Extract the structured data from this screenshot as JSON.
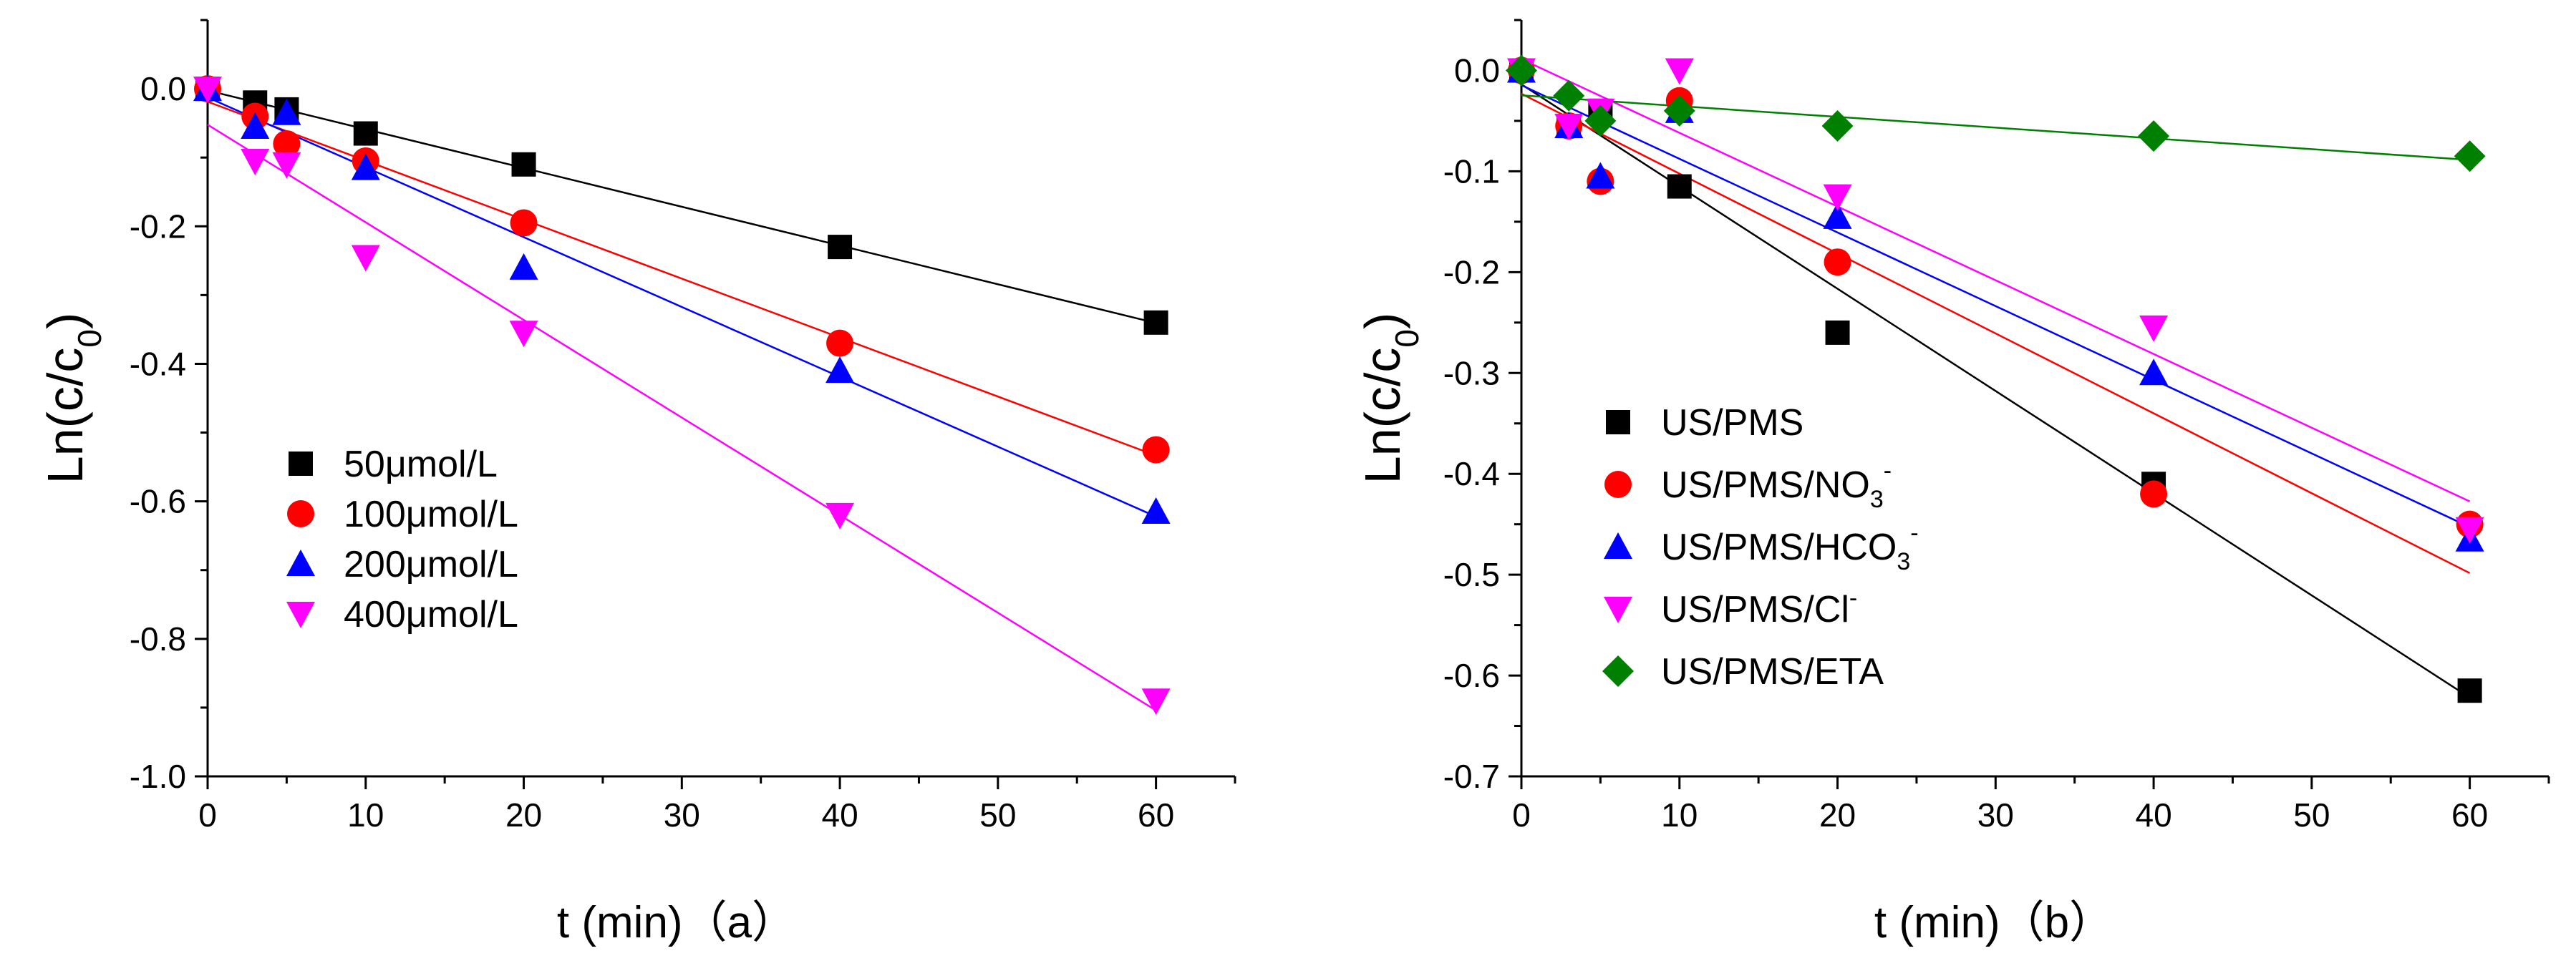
{
  "chart_data": [
    {
      "type": "scatter",
      "panel": "a",
      "title": "",
      "xlabel": "t (min)（a）",
      "ylabel": "Ln(c/c",
      "ylabel_sub": "0",
      "ylabel_close": ")",
      "xlim": [
        0,
        65
      ],
      "ylim": [
        -1.0,
        0.1
      ],
      "xticks": [
        0,
        10,
        20,
        30,
        40,
        50,
        60
      ],
      "xtick_labels": [
        "0",
        "10",
        "20",
        "30",
        "40",
        "50",
        "60"
      ],
      "yticks": [
        0.0,
        -0.2,
        -0.4,
        -0.6,
        -0.8,
        -1.0
      ],
      "ytick_labels": [
        "0.0",
        "-0.2",
        "-0.4",
        "-0.6",
        "-0.8",
        "-1.0"
      ],
      "grid": false,
      "legend_position": "lower-left",
      "fits": "linear",
      "series": [
        {
          "name": "50μmol/L",
          "label": [
            "50μmol/L"
          ],
          "marker": "square",
          "color": "#000000",
          "x": [
            0,
            3,
            5,
            10,
            20,
            40,
            60
          ],
          "y": [
            0.0,
            -0.02,
            -0.03,
            -0.065,
            -0.11,
            -0.23,
            -0.34
          ]
        },
        {
          "name": "100μmol/L",
          "label": [
            "100μmol/L"
          ],
          "marker": "circle",
          "color": "#ff0000",
          "x": [
            0,
            3,
            5,
            10,
            20,
            40,
            60
          ],
          "y": [
            0.0,
            -0.04,
            -0.08,
            -0.105,
            -0.195,
            -0.37,
            -0.525
          ]
        },
        {
          "name": "200μmol/L",
          "label": [
            "200μmol/L"
          ],
          "marker": "triangle-up",
          "color": "#0000ff",
          "x": [
            0,
            3,
            5,
            10,
            20,
            40,
            60
          ],
          "y": [
            0.0,
            -0.055,
            -0.035,
            -0.115,
            -0.26,
            -0.41,
            -0.615
          ]
        },
        {
          "name": "400μmol/L",
          "label": [
            "400μmol/L"
          ],
          "marker": "triangle-down",
          "color": "#ff00ff",
          "x": [
            0,
            3,
            5,
            10,
            20,
            40,
            60
          ],
          "y": [
            0.0,
            -0.105,
            -0.11,
            -0.245,
            -0.355,
            -0.62,
            -0.89
          ]
        }
      ]
    },
    {
      "type": "scatter",
      "panel": "b",
      "title": "",
      "xlabel": "t (min)（b）",
      "ylabel": "Ln(c/c",
      "ylabel_sub": "0",
      "ylabel_close": ")",
      "xlim": [
        0,
        65
      ],
      "ylim": [
        -0.7,
        0.05
      ],
      "xticks": [
        0,
        10,
        20,
        30,
        40,
        50,
        60
      ],
      "xtick_labels": [
        "0",
        "10",
        "20",
        "30",
        "40",
        "50",
        "60"
      ],
      "yticks": [
        0.0,
        -0.1,
        -0.2,
        -0.3,
        -0.4,
        -0.5,
        -0.6,
        -0.7
      ],
      "ytick_labels": [
        "0.0",
        "-0.1",
        "-0.2",
        "-0.3",
        "-0.4",
        "-0.5",
        "-0.6",
        "-0.7"
      ],
      "grid": false,
      "legend_position": "lower-left",
      "fits": "linear",
      "series": [
        {
          "name": "US/PMS",
          "label": [
            "US/PMS"
          ],
          "marker": "square",
          "color": "#000000",
          "x": [
            0,
            3,
            5,
            10,
            20,
            40,
            60
          ],
          "y": [
            0.0,
            -0.055,
            -0.04,
            -0.115,
            -0.26,
            -0.41,
            -0.615
          ]
        },
        {
          "name": "US/PMS/NO3-",
          "label": [
            "US/PMS/NO",
            "3",
            "-"
          ],
          "marker": "circle",
          "color": "#ff0000",
          "x": [
            0,
            3,
            5,
            10,
            20,
            40,
            60
          ],
          "y": [
            0.0,
            -0.055,
            -0.11,
            -0.03,
            -0.19,
            -0.42,
            -0.45
          ]
        },
        {
          "name": "US/PMS/HCO3-",
          "label": [
            "US/PMS/HCO",
            "3",
            "-"
          ],
          "marker": "triangle-up",
          "color": "#0000ff",
          "x": [
            0,
            3,
            5,
            10,
            20,
            40,
            60
          ],
          "y": [
            0.0,
            -0.055,
            -0.105,
            -0.04,
            -0.145,
            -0.3,
            -0.465
          ]
        },
        {
          "name": "US/PMS/Cl-",
          "label": [
            "US/PMS/Cl",
            "",
            "-"
          ],
          "marker": "triangle-down",
          "color": "#ff00ff",
          "x": [
            0,
            3,
            5,
            10,
            20,
            40,
            60
          ],
          "y": [
            0.0,
            -0.055,
            -0.04,
            0.0,
            -0.125,
            -0.255,
            -0.455
          ]
        },
        {
          "name": "US/PMS/ETA",
          "label": [
            "US/PMS/ETA"
          ],
          "marker": "diamond",
          "color": "#008000",
          "x": [
            0,
            3,
            5,
            10,
            20,
            40,
            60
          ],
          "y": [
            0.0,
            -0.025,
            -0.05,
            -0.04,
            -0.055,
            -0.065,
            -0.085
          ]
        }
      ]
    }
  ]
}
